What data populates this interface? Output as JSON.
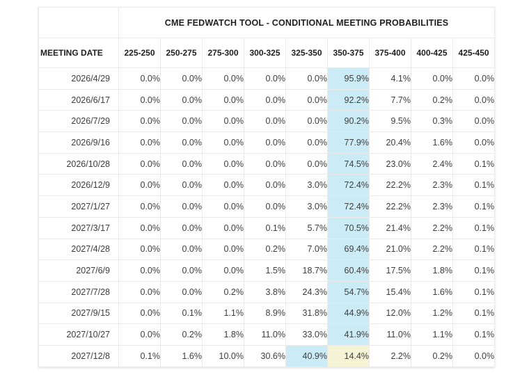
{
  "chart_data": {
    "type": "table",
    "title": "CME FEDWATCH TOOL - CONDITIONAL MEETING PROBABILITIES",
    "row_header": "MEETING DATE",
    "columns": [
      "225-250",
      "250-275",
      "275-300",
      "300-325",
      "325-350",
      "350-375",
      "375-400",
      "400-425",
      "425-450"
    ],
    "rows": [
      {
        "date": "2026/4/29",
        "values": [
          "0.0%",
          "0.0%",
          "0.0%",
          "0.0%",
          "0.0%",
          "95.9%",
          "4.1%",
          "0.0%",
          "0.0%"
        ],
        "blue": [
          5
        ],
        "yellow": []
      },
      {
        "date": "2026/6/17",
        "values": [
          "0.0%",
          "0.0%",
          "0.0%",
          "0.0%",
          "0.0%",
          "92.2%",
          "7.7%",
          "0.2%",
          "0.0%"
        ],
        "blue": [
          5
        ],
        "yellow": []
      },
      {
        "date": "2026/7/29",
        "values": [
          "0.0%",
          "0.0%",
          "0.0%",
          "0.0%",
          "0.0%",
          "90.2%",
          "9.5%",
          "0.3%",
          "0.0%"
        ],
        "blue": [
          5
        ],
        "yellow": []
      },
      {
        "date": "2026/9/16",
        "values": [
          "0.0%",
          "0.0%",
          "0.0%",
          "0.0%",
          "0.0%",
          "77.9%",
          "20.4%",
          "1.6%",
          "0.0%"
        ],
        "blue": [
          5
        ],
        "yellow": []
      },
      {
        "date": "2026/10/28",
        "values": [
          "0.0%",
          "0.0%",
          "0.0%",
          "0.0%",
          "0.0%",
          "74.5%",
          "23.0%",
          "2.4%",
          "0.1%"
        ],
        "blue": [
          5
        ],
        "yellow": []
      },
      {
        "date": "2026/12/9",
        "values": [
          "0.0%",
          "0.0%",
          "0.0%",
          "0.0%",
          "3.0%",
          "72.4%",
          "22.2%",
          "2.3%",
          "0.1%"
        ],
        "blue": [
          5
        ],
        "yellow": []
      },
      {
        "date": "2027/1/27",
        "values": [
          "0.0%",
          "0.0%",
          "0.0%",
          "0.0%",
          "3.0%",
          "72.4%",
          "22.2%",
          "2.3%",
          "0.1%"
        ],
        "blue": [
          5
        ],
        "yellow": []
      },
      {
        "date": "2027/3/17",
        "values": [
          "0.0%",
          "0.0%",
          "0.0%",
          "0.1%",
          "5.7%",
          "70.5%",
          "21.4%",
          "2.2%",
          "0.1%"
        ],
        "blue": [
          5
        ],
        "yellow": []
      },
      {
        "date": "2027/4/28",
        "values": [
          "0.0%",
          "0.0%",
          "0.0%",
          "0.2%",
          "7.0%",
          "69.4%",
          "21.0%",
          "2.2%",
          "0.1%"
        ],
        "blue": [
          5
        ],
        "yellow": []
      },
      {
        "date": "2027/6/9",
        "values": [
          "0.0%",
          "0.0%",
          "0.0%",
          "1.5%",
          "18.7%",
          "60.4%",
          "17.5%",
          "1.8%",
          "0.1%"
        ],
        "blue": [
          5
        ],
        "yellow": []
      },
      {
        "date": "2027/7/28",
        "values": [
          "0.0%",
          "0.0%",
          "0.2%",
          "3.8%",
          "24.3%",
          "54.7%",
          "15.4%",
          "1.6%",
          "0.1%"
        ],
        "blue": [
          5
        ],
        "yellow": []
      },
      {
        "date": "2027/9/15",
        "values": [
          "0.0%",
          "0.1%",
          "1.1%",
          "8.9%",
          "31.8%",
          "44.9%",
          "12.0%",
          "1.2%",
          "0.1%"
        ],
        "blue": [
          5
        ],
        "yellow": []
      },
      {
        "date": "2027/10/27",
        "values": [
          "0.0%",
          "0.2%",
          "1.8%",
          "11.0%",
          "33.0%",
          "41.9%",
          "11.0%",
          "1.1%",
          "0.1%"
        ],
        "blue": [
          5
        ],
        "yellow": []
      },
      {
        "date": "2027/12/8",
        "values": [
          "0.1%",
          "1.6%",
          "10.0%",
          "30.6%",
          "40.9%",
          "14.4%",
          "2.2%",
          "0.2%",
          "0.0%"
        ],
        "blue": [
          4
        ],
        "yellow": [
          5
        ]
      }
    ]
  },
  "colors": {
    "highlight_blue": "#cbecf6",
    "highlight_yellow": "#f4f4d4",
    "border": "#e9e9e9",
    "header_text": "#1f1f1f",
    "cell_text": "#3d3d3d"
  }
}
